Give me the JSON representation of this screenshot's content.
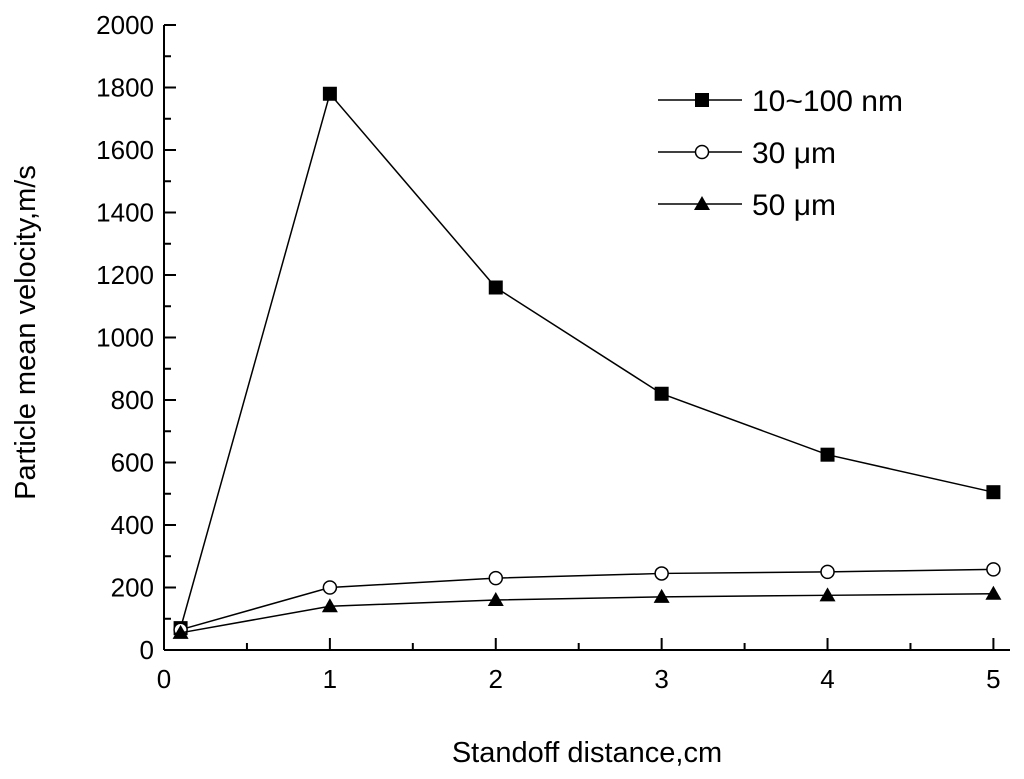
{
  "chart_data": {
    "type": "line",
    "xlabel": "Standoff distance,cm",
    "ylabel": "Particle mean velocity,m/s",
    "xlim": [
      0,
      5.1
    ],
    "ylim": [
      0,
      2000
    ],
    "xticks": [
      "0",
      "1",
      "2",
      "3",
      "4",
      "5"
    ],
    "yticks": [
      "0",
      "200",
      "400",
      "600",
      "800",
      "1000",
      "1200",
      "1400",
      "1600",
      "1800",
      "2000"
    ],
    "x": [
      0.1,
      1,
      2,
      3,
      4,
      5
    ],
    "grid": false,
    "legend_position": "top-right",
    "series": [
      {
        "name": "10~100 nm",
        "marker": "filled-square",
        "values": [
          70,
          1780,
          1160,
          820,
          625,
          505
        ]
      },
      {
        "name": "30 μm",
        "marker": "open-circle",
        "values": [
          65,
          200,
          230,
          245,
          250,
          258
        ]
      },
      {
        "name": "50 μm",
        "marker": "filled-triangle",
        "values": [
          55,
          140,
          160,
          170,
          175,
          180
        ]
      }
    ]
  }
}
